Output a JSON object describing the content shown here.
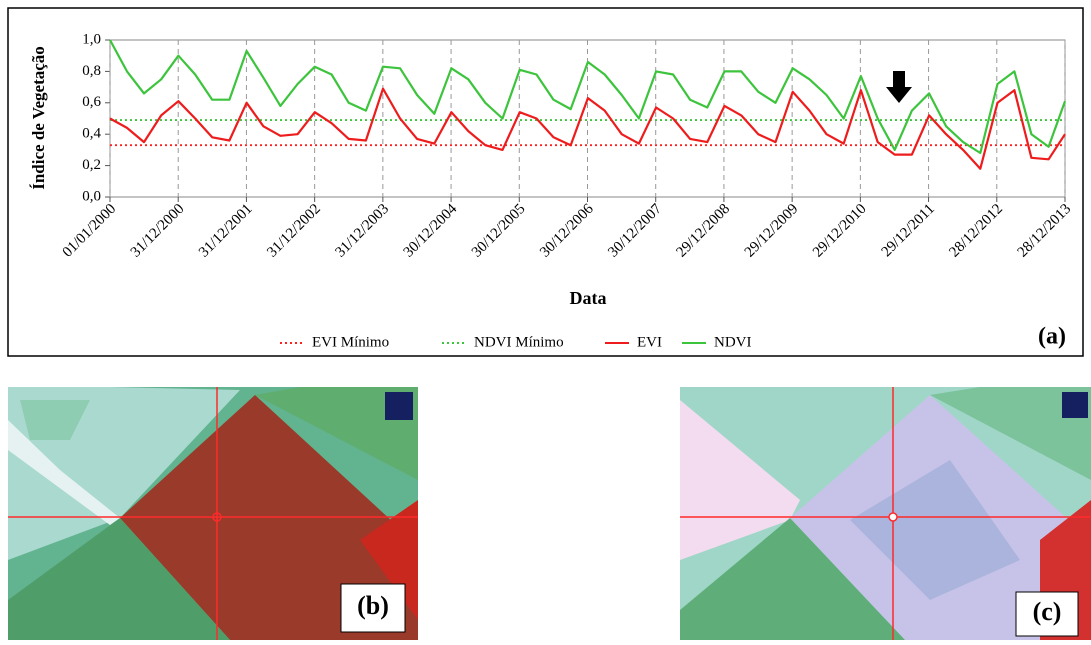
{
  "chart_data": {
    "type": "line",
    "y_label": "Índice de Vegetação",
    "x_label": "Data",
    "panel_label": "(a)",
    "annotation": "arrow",
    "xlim": [
      "2000-01-01",
      "2013-12-28"
    ],
    "xticks": [
      {
        "value": "2000-01-01",
        "label": "01/01/2000"
      },
      {
        "value": "2000-12-31",
        "label": "31/12/2000"
      },
      {
        "value": "2001-12-31",
        "label": "31/12/2001"
      },
      {
        "value": "2002-12-31",
        "label": "31/12/2002"
      },
      {
        "value": "2003-12-31",
        "label": "31/12/2003"
      },
      {
        "value": "2004-12-30",
        "label": "30/12/2004"
      },
      {
        "value": "2005-12-30",
        "label": "30/12/2005"
      },
      {
        "value": "2006-12-30",
        "label": "30/12/2006"
      },
      {
        "value": "2007-12-30",
        "label": "30/12/2007"
      },
      {
        "value": "2008-12-29",
        "label": "29/12/2008"
      },
      {
        "value": "2009-12-29",
        "label": "29/12/2009"
      },
      {
        "value": "2010-12-29",
        "label": "29/12/2010"
      },
      {
        "value": "2011-12-29",
        "label": "29/12/2011"
      },
      {
        "value": "2012-12-28",
        "label": "28/12/2012"
      },
      {
        "value": "2013-12-28",
        "label": "28/12/2013"
      }
    ],
    "ylim": [
      0,
      1
    ],
    "yticks": [
      {
        "value": 0,
        "label": "0,0"
      },
      {
        "value": 0.2,
        "label": "0,2"
      },
      {
        "value": 0.4,
        "label": "0,4"
      },
      {
        "value": 0.6,
        "label": "0,6"
      },
      {
        "value": 0.8,
        "label": "0,8"
      },
      {
        "value": 1,
        "label": "1,0"
      }
    ],
    "x_grid": true,
    "x": [
      "2000-01-01",
      "2000-04-01",
      "2000-07-01",
      "2000-10-01",
      "2001-01-01",
      "2001-04-01",
      "2001-07-01",
      "2001-10-01",
      "2002-01-01",
      "2002-04-01",
      "2002-07-01",
      "2002-10-01",
      "2003-01-01",
      "2003-04-01",
      "2003-07-01",
      "2003-10-01",
      "2004-01-01",
      "2004-04-01",
      "2004-07-01",
      "2004-10-01",
      "2005-01-01",
      "2005-04-01",
      "2005-07-01",
      "2005-10-01",
      "2006-01-01",
      "2006-04-01",
      "2006-07-01",
      "2006-10-01",
      "2007-01-01",
      "2007-04-01",
      "2007-07-01",
      "2007-10-01",
      "2008-01-01",
      "2008-04-01",
      "2008-07-01",
      "2008-10-01",
      "2009-01-01",
      "2009-04-01",
      "2009-07-01",
      "2009-10-01",
      "2010-01-01",
      "2010-04-01",
      "2010-07-01",
      "2010-10-01",
      "2011-01-01",
      "2011-04-01",
      "2011-07-01",
      "2011-10-01",
      "2012-01-01",
      "2012-04-01",
      "2012-07-01",
      "2012-10-01",
      "2013-01-01",
      "2013-04-01",
      "2013-07-01",
      "2013-10-01",
      "2013-12-28"
    ],
    "series": [
      {
        "name": "EVI Mínimo",
        "color": "#ff2020",
        "style": "dotted",
        "value": 0.33
      },
      {
        "name": "NDVI Mínimo",
        "color": "#3cc43c",
        "style": "dotted",
        "value": 0.49
      },
      {
        "name": "EVI",
        "color": "#ee1c1c",
        "style": "solid",
        "values": [
          0.5,
          0.44,
          0.35,
          0.52,
          0.61,
          0.5,
          0.38,
          0.36,
          0.6,
          0.45,
          0.39,
          0.4,
          0.54,
          0.47,
          0.37,
          0.36,
          0.69,
          0.5,
          0.37,
          0.34,
          0.54,
          0.42,
          0.33,
          0.3,
          0.54,
          0.5,
          0.38,
          0.33,
          0.63,
          0.55,
          0.4,
          0.34,
          0.57,
          0.5,
          0.37,
          0.35,
          0.58,
          0.52,
          0.4,
          0.35,
          0.67,
          0.55,
          0.4,
          0.34,
          0.68,
          0.35,
          0.27,
          0.27,
          0.52,
          0.4,
          0.3,
          0.18,
          0.6,
          0.68,
          0.25,
          0.24,
          0.4
        ]
      },
      {
        "name": "NDVI",
        "color": "#3cc43c",
        "style": "solid",
        "values": [
          1.0,
          0.8,
          0.66,
          0.75,
          0.9,
          0.78,
          0.62,
          0.62,
          0.93,
          0.76,
          0.58,
          0.72,
          0.83,
          0.78,
          0.6,
          0.55,
          0.83,
          0.82,
          0.65,
          0.53,
          0.82,
          0.75,
          0.6,
          0.5,
          0.81,
          0.78,
          0.62,
          0.56,
          0.86,
          0.78,
          0.65,
          0.5,
          0.8,
          0.78,
          0.62,
          0.57,
          0.8,
          0.8,
          0.67,
          0.6,
          0.82,
          0.75,
          0.65,
          0.5,
          0.77,
          0.5,
          0.3,
          0.55,
          0.66,
          0.45,
          0.35,
          0.28,
          0.72,
          0.8,
          0.4,
          0.32,
          0.61
        ]
      }
    ]
  },
  "images": [
    {
      "label": "(b)"
    },
    {
      "label": "(c)"
    }
  ]
}
